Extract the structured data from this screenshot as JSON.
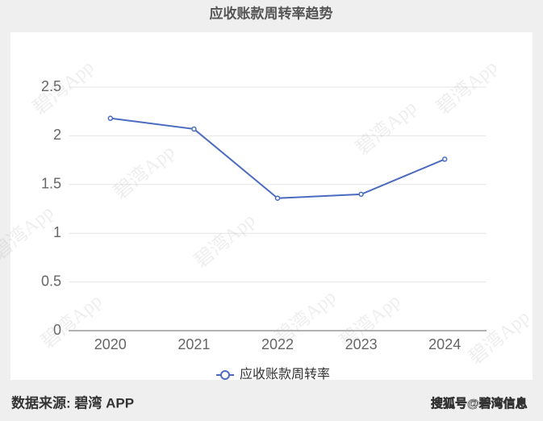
{
  "chart_data": {
    "type": "line",
    "title": "应收账款周转率趋势",
    "categories": [
      "2020",
      "2021",
      "2022",
      "2023",
      "2024"
    ],
    "series": [
      {
        "name": "应收账款周转率",
        "color": "#4a6bbf",
        "values": [
          2.18,
          2.07,
          1.36,
          1.4,
          1.76
        ]
      }
    ],
    "ylim": [
      0,
      2.5
    ],
    "yticks": [
      0,
      0.5,
      1,
      1.5,
      2,
      2.5
    ],
    "grid": true,
    "legend": "bottom"
  },
  "footer": {
    "source": "数据来源: 碧湾 APP",
    "credit": "搜狐号@碧湾信息"
  },
  "watermark": "碧湾App"
}
